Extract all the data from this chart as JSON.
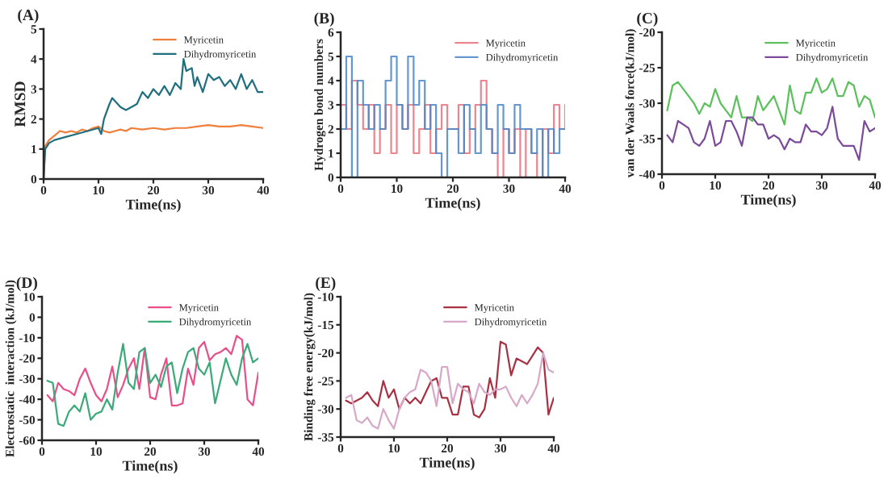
{
  "chart_data": [
    {
      "type": "line",
      "title": "(A)",
      "xlabel": "Time(ns)",
      "ylabel": "RMSD",
      "xlim": [
        0,
        40
      ],
      "ylim": [
        0,
        5
      ],
      "xticks": [
        0,
        10,
        20,
        30,
        40
      ],
      "yticks": [
        0,
        1,
        2,
        3,
        4,
        5
      ],
      "legend": "top right",
      "grid": false,
      "series": [
        {
          "name": "Myricetin",
          "color": "#f07f3c",
          "x": [
            0,
            0.3,
            1,
            2,
            3,
            4,
            5,
            6,
            7,
            8,
            9,
            10,
            11,
            12,
            13,
            14,
            15,
            16,
            18,
            20,
            22,
            24,
            26,
            28,
            30,
            32,
            34,
            36,
            38,
            40
          ],
          "values": [
            0,
            1.1,
            1.3,
            1.45,
            1.6,
            1.55,
            1.6,
            1.55,
            1.65,
            1.6,
            1.7,
            1.75,
            1.6,
            1.55,
            1.6,
            1.65,
            1.6,
            1.7,
            1.65,
            1.7,
            1.65,
            1.7,
            1.7,
            1.75,
            1.8,
            1.75,
            1.75,
            1.8,
            1.75,
            1.7
          ]
        },
        {
          "name": "Dihydromyricetin",
          "color": "#1f6f7f",
          "x": [
            0,
            0.3,
            1,
            2,
            4,
            6,
            8,
            10,
            10.5,
            11,
            12,
            12.5,
            13,
            14,
            15,
            16,
            17,
            18,
            19,
            20,
            21,
            22,
            23,
            24,
            25,
            25.5,
            26,
            27,
            27.5,
            28,
            29,
            30,
            31,
            32,
            33,
            34,
            35,
            36,
            37,
            38,
            39,
            40
          ],
          "values": [
            0,
            1.0,
            1.2,
            1.3,
            1.4,
            1.5,
            1.6,
            1.7,
            1.5,
            2.0,
            2.5,
            2.7,
            2.6,
            2.4,
            2.3,
            2.4,
            2.5,
            2.9,
            2.7,
            3.0,
            2.8,
            3.1,
            2.8,
            3.2,
            3.0,
            4.0,
            3.6,
            3.7,
            3.1,
            3.4,
            2.9,
            3.5,
            3.3,
            3.4,
            3.1,
            3.3,
            3.0,
            3.5,
            3.0,
            3.3,
            2.9,
            2.9
          ]
        }
      ]
    },
    {
      "type": "step",
      "title": "(B)",
      "xlabel": "Time(ns)",
      "ylabel": "Hydrogen bond numbers",
      "xlim": [
        0,
        40
      ],
      "ylim": [
        0,
        6
      ],
      "xticks": [
        0,
        10,
        20,
        30,
        40
      ],
      "yticks": [
        0,
        1,
        2,
        3,
        4,
        5,
        6
      ],
      "legend": "top right",
      "grid": false,
      "x": [
        0,
        1,
        2,
        3,
        4,
        5,
        6,
        7,
        8,
        9,
        10,
        11,
        12,
        13,
        14,
        15,
        16,
        17,
        18,
        19,
        20,
        21,
        22,
        23,
        24,
        25,
        26,
        27,
        28,
        29,
        30,
        31,
        32,
        33,
        34,
        35,
        36,
        37,
        38,
        39,
        40
      ],
      "series": [
        {
          "name": "Myricetin",
          "color": "#e8707a",
          "values": [
            3,
            2,
            4,
            3,
            2,
            3,
            1,
            2,
            3,
            1,
            3,
            2,
            3,
            1,
            2,
            3,
            1,
            2,
            3,
            2,
            2,
            3,
            1,
            2,
            3,
            4,
            2,
            1,
            0,
            2,
            1,
            2,
            0,
            2,
            1,
            0,
            2,
            1,
            3,
            2,
            3
          ]
        },
        {
          "name": "Dihydromyricetin",
          "color": "#4a86c8",
          "values": [
            2,
            5,
            0,
            4,
            3,
            2,
            3,
            2,
            4,
            5,
            3,
            2,
            5,
            3,
            4,
            2,
            3,
            1,
            0,
            2,
            2,
            1,
            3,
            2,
            1,
            3,
            2,
            1,
            3,
            2,
            1,
            3,
            2,
            2,
            1,
            2,
            0,
            2,
            1,
            2,
            2
          ]
        }
      ]
    },
    {
      "type": "line",
      "title": "(C)",
      "xlabel": "Time(ns)",
      "ylabel": "van der Waals force(kJ/mol)",
      "xlim": [
        0,
        40
      ],
      "ylim": [
        -40,
        -20
      ],
      "xticks": [
        0,
        10,
        20,
        30,
        40
      ],
      "yticks": [
        {
          "value": -40,
          "label": "-40"
        },
        {
          "value": -35,
          "label": "-35"
        },
        {
          "value": -30,
          "label": "-30"
        },
        {
          "value": -25,
          "label": "-25"
        },
        {
          "value": -20,
          "label": "-20"
        }
      ],
      "legend": "top right",
      "grid": false,
      "x": [
        1,
        2,
        3,
        4,
        5,
        6,
        7,
        8,
        9,
        10,
        11,
        12,
        13,
        14,
        15,
        16,
        17,
        18,
        19,
        20,
        21,
        22,
        23,
        24,
        25,
        26,
        27,
        28,
        29,
        30,
        31,
        32,
        33,
        34,
        35,
        36,
        37,
        38,
        39,
        40
      ],
      "series": [
        {
          "name": "Myricetin",
          "color": "#5cc05c",
          "values": [
            -31,
            -27.5,
            -27,
            -28,
            -29,
            -30,
            -31.5,
            -30,
            -30.5,
            -28,
            -30,
            -31,
            -32,
            -29,
            -32,
            -32,
            -32.5,
            -29,
            -31,
            -30,
            -29,
            -31,
            -33,
            -27.5,
            -31,
            -31.5,
            -28.5,
            -28.5,
            -26.5,
            -28.5,
            -28,
            -26.5,
            -29,
            -29,
            -27,
            -27.5,
            -30.5,
            -29,
            -29.5,
            -32
          ]
        },
        {
          "name": "Dihydromyricetin",
          "color": "#7b4a9a",
          "values": [
            -34.5,
            -35.5,
            -32.5,
            -33,
            -33.5,
            -35.5,
            -36,
            -35,
            -32.5,
            -36,
            -35.5,
            -32.5,
            -32.5,
            -34,
            -36,
            -32,
            -32,
            -33,
            -33,
            -35,
            -34.5,
            -35,
            -36.5,
            -35,
            -35.5,
            -35.5,
            -33,
            -34,
            -34,
            -34.5,
            -33.5,
            -30.5,
            -35,
            -36,
            -36,
            -36,
            -38,
            -32.5,
            -34,
            -33.5
          ]
        }
      ]
    },
    {
      "type": "line",
      "title": "(D)",
      "xlabel": "Time(ns)",
      "ylabel": "Electrostatic  interaction (kJ/mol)",
      "xlim": [
        0,
        40
      ],
      "ylim": [
        -60,
        10
      ],
      "xticks": [
        0,
        10,
        20,
        30,
        40
      ],
      "yticks": [
        {
          "value": -60,
          "label": "-60"
        },
        {
          "value": -50,
          "label": "-50"
        },
        {
          "value": -40,
          "label": "-40"
        },
        {
          "value": -30,
          "label": "-30"
        },
        {
          "value": -20,
          "label": "-20"
        },
        {
          "value": -10,
          "label": "-10"
        },
        0,
        10
      ],
      "legend": "top right",
      "grid": false,
      "x": [
        1,
        2,
        3,
        4,
        5,
        6,
        7,
        8,
        9,
        10,
        11,
        12,
        13,
        14,
        15,
        16,
        17,
        18,
        19,
        20,
        21,
        22,
        23,
        24,
        25,
        26,
        27,
        28,
        29,
        30,
        31,
        32,
        33,
        34,
        35,
        36,
        37,
        38,
        39,
        40
      ],
      "series": [
        {
          "name": "Myricetin",
          "color": "#e8508a",
          "values": [
            -38,
            -41,
            -32,
            -35,
            -36,
            -38,
            -30,
            -25,
            -32,
            -38,
            -41,
            -35,
            -24,
            -39,
            -33,
            -25,
            -20,
            -35,
            -15,
            -39,
            -40,
            -28,
            -20,
            -43,
            -43,
            -42,
            -25,
            -33,
            -15,
            -12,
            -21,
            -18,
            -17,
            -15,
            -18,
            -9,
            -11,
            -40,
            -43,
            -27
          ]
        },
        {
          "name": "Dihydromyricetin",
          "color": "#3aaa78",
          "values": [
            -31,
            -32,
            -52,
            -53,
            -46,
            -43,
            -46,
            -37,
            -50,
            -47,
            -46,
            -40,
            -45,
            -27,
            -13,
            -32,
            -35,
            -17,
            -15,
            -32,
            -28,
            -34,
            -24,
            -22,
            -37,
            -25,
            -17,
            -15,
            -25,
            -28,
            -22,
            -42,
            -31,
            -20,
            -28,
            -33,
            -20,
            -13,
            -22,
            -20
          ]
        }
      ]
    },
    {
      "type": "line",
      "title": "(E)",
      "xlabel": "Time(ns)",
      "ylabel": "Binding free energy(kJ/mol)",
      "xlim": [
        0,
        40
      ],
      "ylim": [
        -35,
        -10
      ],
      "xticks": [
        0,
        10,
        20,
        30,
        40
      ],
      "yticks": [
        {
          "value": -35,
          "label": "-35"
        },
        {
          "value": -30,
          "label": "-30"
        },
        {
          "value": -25,
          "label": "-25"
        },
        {
          "value": -20,
          "label": "-20"
        },
        {
          "value": -15,
          "label": "-15"
        },
        {
          "value": -10,
          "label": "-10"
        }
      ],
      "legend": "top right",
      "grid": false,
      "x": [
        1,
        2,
        3,
        4,
        5,
        6,
        7,
        8,
        9,
        10,
        11,
        12,
        13,
        14,
        15,
        16,
        17,
        18,
        19,
        20,
        21,
        22,
        23,
        24,
        25,
        26,
        27,
        28,
        29,
        30,
        31,
        32,
        33,
        34,
        35,
        36,
        37,
        38,
        39,
        40
      ],
      "series": [
        {
          "name": "Myricetin",
          "color": "#a83244",
          "values": [
            -28.5,
            -29,
            -28.5,
            -28,
            -27,
            -28.5,
            -29.5,
            -25,
            -28,
            -26.5,
            -30,
            -28,
            -29,
            -28,
            -29,
            -27,
            -25,
            -24.5,
            -28,
            -28,
            -31,
            -31,
            -26,
            -26,
            -31,
            -31.5,
            -30,
            -24.5,
            -28,
            -18,
            -18.5,
            -24,
            -21,
            -21.5,
            -22,
            -20.5,
            -19,
            -20,
            -31,
            -28
          ]
        },
        {
          "name": "Dihydromyricetin",
          "color": "#d8a8c8",
          "values": [
            -28,
            -27.5,
            -32,
            -32.5,
            -31.5,
            -33,
            -33.5,
            -30,
            -32,
            -33.5,
            -30,
            -28,
            -27,
            -26.5,
            -23,
            -23.5,
            -25,
            -29.5,
            -22.5,
            -22.5,
            -29,
            -25.5,
            -26.5,
            -27,
            -29,
            -25.5,
            -27,
            -27.5,
            -26.5,
            -26.5,
            -26,
            -28,
            -29.5,
            -27.5,
            -29,
            -27.5,
            -25.5,
            -20,
            -23,
            -23.5
          ]
        }
      ]
    }
  ]
}
